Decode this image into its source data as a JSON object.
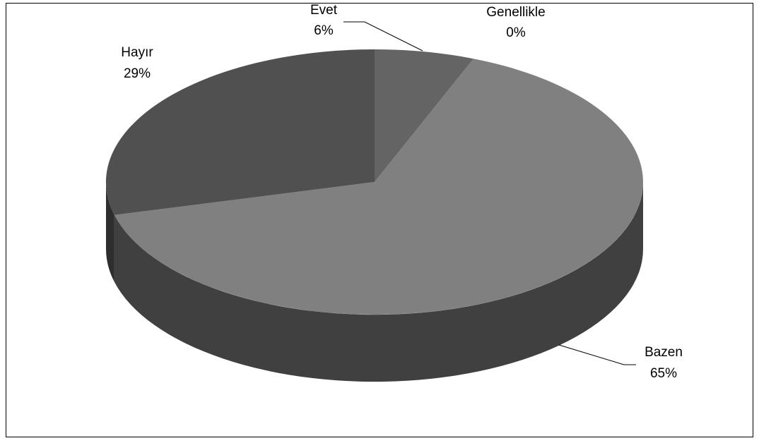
{
  "chart_data": {
    "type": "pie",
    "title": "",
    "slices": [
      {
        "label": "Evet",
        "value": 6,
        "display": "6%",
        "color": "#646464"
      },
      {
        "label": "Genellikle",
        "value": 0,
        "display": "0%",
        "color": "#4a4a4a"
      },
      {
        "label": "Bazen",
        "value": 65,
        "display": "65%",
        "color": "#808080"
      },
      {
        "label": "Hayır",
        "value": 29,
        "display": "29%",
        "color": "#505050"
      }
    ],
    "style": "3d",
    "legend": "none",
    "side_colors": {
      "bazen": "#404040",
      "hayir": "#2e2e2e"
    }
  }
}
